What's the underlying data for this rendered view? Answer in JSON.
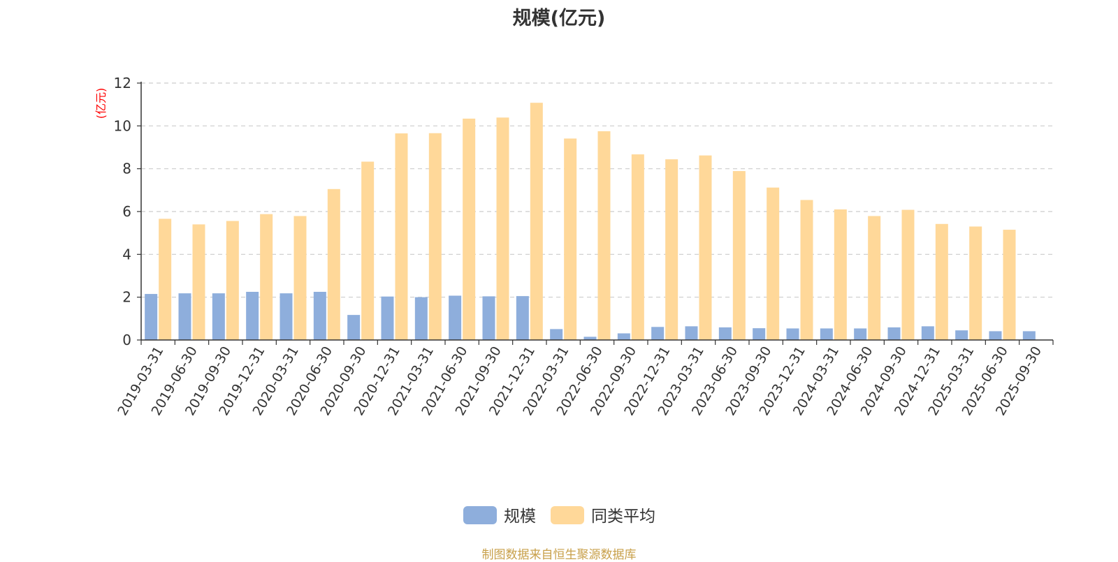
{
  "chart_data": {
    "type": "bar",
    "title": "规模(亿元)",
    "ylabel": "(亿元)",
    "xlabel": "",
    "ylim": [
      0,
      12
    ],
    "yticks": [
      0,
      2,
      4,
      6,
      8,
      10,
      12
    ],
    "grid": true,
    "legend_position": "bottom-center",
    "categories": [
      "2019-03-31",
      "2019-06-30",
      "2019-09-30",
      "2019-12-31",
      "2020-03-31",
      "2020-06-30",
      "2020-09-30",
      "2020-12-31",
      "2021-03-31",
      "2021-06-30",
      "2021-09-30",
      "2021-12-31",
      "2022-03-31",
      "2022-06-30",
      "2022-09-30",
      "2022-12-31",
      "2023-03-31",
      "2023-06-30",
      "2023-09-30",
      "2023-12-31",
      "2024-03-31",
      "2024-06-30",
      "2024-09-30",
      "2024-12-31",
      "2025-03-31",
      "2025-06-30",
      "2025-09-30"
    ],
    "series": [
      {
        "name": "规模",
        "color": "#8eaedc",
        "values": [
          2.15,
          2.18,
          2.18,
          2.25,
          2.18,
          2.25,
          1.17,
          2.03,
          2.0,
          2.07,
          2.04,
          2.05,
          0.51,
          0.15,
          0.31,
          0.61,
          0.64,
          0.59,
          0.55,
          0.54,
          0.54,
          0.54,
          0.59,
          0.64,
          0.45,
          0.41,
          0.41
        ]
      },
      {
        "name": "同类平均",
        "color": "#ffd899",
        "values": [
          5.66,
          5.4,
          5.56,
          5.88,
          5.79,
          7.05,
          8.33,
          9.65,
          9.66,
          10.34,
          10.39,
          11.08,
          9.41,
          9.75,
          8.67,
          8.44,
          8.62,
          7.89,
          7.12,
          6.54,
          6.1,
          5.79,
          6.08,
          5.42,
          5.3,
          5.15,
          null
        ]
      }
    ]
  },
  "footer": {
    "source": "制图数据来自恒生聚源数据库"
  }
}
